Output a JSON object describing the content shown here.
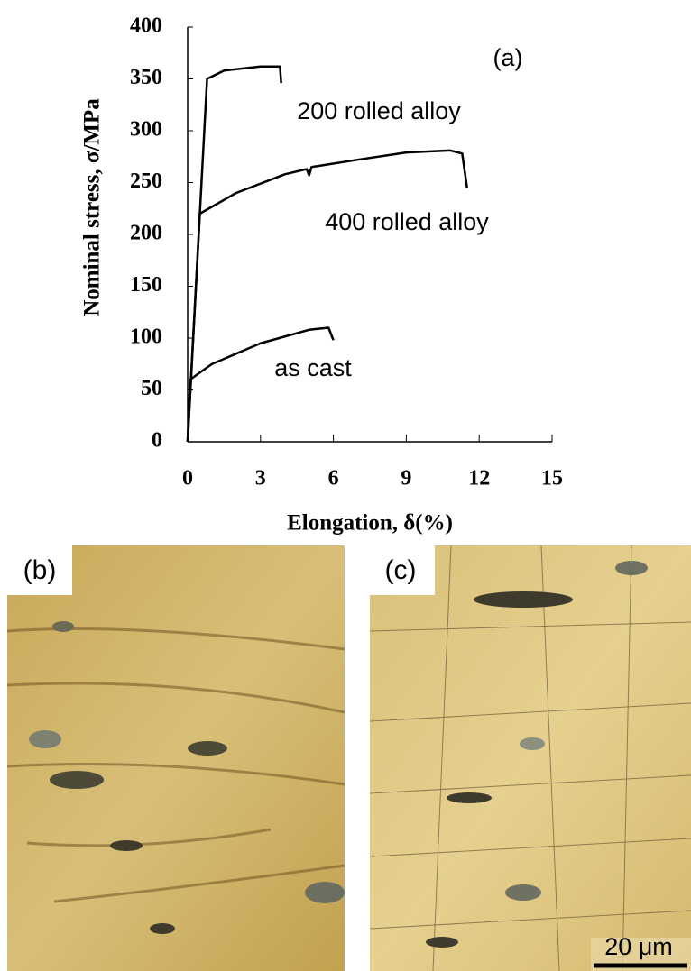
{
  "chart_data": {
    "type": "line",
    "annotation": "(a)",
    "xlabel": "Elongation, δ(%)",
    "ylabel": "Nominal stress, σ/MPa",
    "xlim": [
      0,
      15
    ],
    "xticks": [
      0,
      3,
      6,
      9,
      12,
      15
    ],
    "ylim": [
      0,
      400
    ],
    "yticks": [
      0,
      50,
      100,
      150,
      200,
      250,
      300,
      350,
      400
    ],
    "series": [
      {
        "name": "200 rolled alloy",
        "color": "#000000",
        "x": [
          0,
          0.8,
          1.5,
          3,
          3.8,
          3.85
        ],
        "values": [
          0,
          350,
          358,
          362,
          362,
          346
        ]
      },
      {
        "name": "400 rolled alloy",
        "color": "#000000",
        "x": [
          0,
          0.5,
          2,
          4,
          4.9,
          5,
          5.1,
          7,
          9,
          10.8,
          11.3,
          11.5
        ],
        "values": [
          0,
          220,
          240,
          258,
          263,
          257,
          265,
          272,
          279,
          281,
          278,
          245
        ]
      },
      {
        "name": "as cast",
        "color": "#000000",
        "x": [
          0,
          0.1,
          1,
          3,
          5,
          5.8,
          6
        ],
        "values": [
          0,
          60,
          75,
          95,
          108,
          110,
          98
        ]
      }
    ]
  },
  "panels": [
    {
      "label": "(b)"
    },
    {
      "label": "(c)"
    }
  ],
  "scale_bar": "20 μm"
}
